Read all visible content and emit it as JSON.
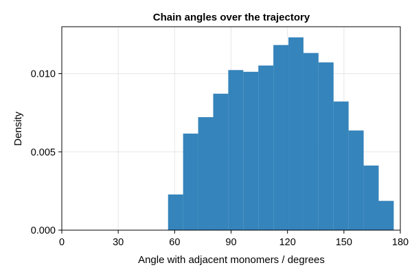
{
  "chart_data": {
    "type": "bar",
    "title": "Chain angles over the trajectory",
    "xlabel": "Angle with adjacent monomers / degrees",
    "ylabel": "Density",
    "xlim": [
      0,
      180
    ],
    "ylim": [
      0,
      0.013
    ],
    "xticks": [
      0,
      30,
      60,
      90,
      120,
      150,
      180
    ],
    "xtick_labels": [
      "0",
      "30",
      "60",
      "90",
      "120",
      "150",
      "180"
    ],
    "yticks": [
      0,
      0.005,
      0.01
    ],
    "ytick_labels": [
      "0.000",
      "0.005",
      "0.010"
    ],
    "grid": true,
    "bar_color": "#1f77b4",
    "bins": [
      {
        "start": 56.5,
        "end": 64.5,
        "value": 0.00228
      },
      {
        "start": 64.5,
        "end": 72.5,
        "value": 0.00617
      },
      {
        "start": 72.5,
        "end": 80.5,
        "value": 0.00722
      },
      {
        "start": 80.5,
        "end": 88.5,
        "value": 0.00872
      },
      {
        "start": 88.5,
        "end": 96.5,
        "value": 0.01023
      },
      {
        "start": 96.5,
        "end": 104.5,
        "value": 0.01012
      },
      {
        "start": 104.5,
        "end": 112.5,
        "value": 0.01052
      },
      {
        "start": 112.5,
        "end": 120.5,
        "value": 0.01183
      },
      {
        "start": 120.5,
        "end": 128.5,
        "value": 0.01232
      },
      {
        "start": 128.5,
        "end": 136.5,
        "value": 0.01132
      },
      {
        "start": 136.5,
        "end": 144.5,
        "value": 0.01072
      },
      {
        "start": 144.5,
        "end": 152.5,
        "value": 0.00822
      },
      {
        "start": 152.5,
        "end": 160.5,
        "value": 0.00637
      },
      {
        "start": 160.5,
        "end": 168.5,
        "value": 0.00413
      },
      {
        "start": 168.5,
        "end": 176.5,
        "value": 0.00187
      }
    ]
  }
}
